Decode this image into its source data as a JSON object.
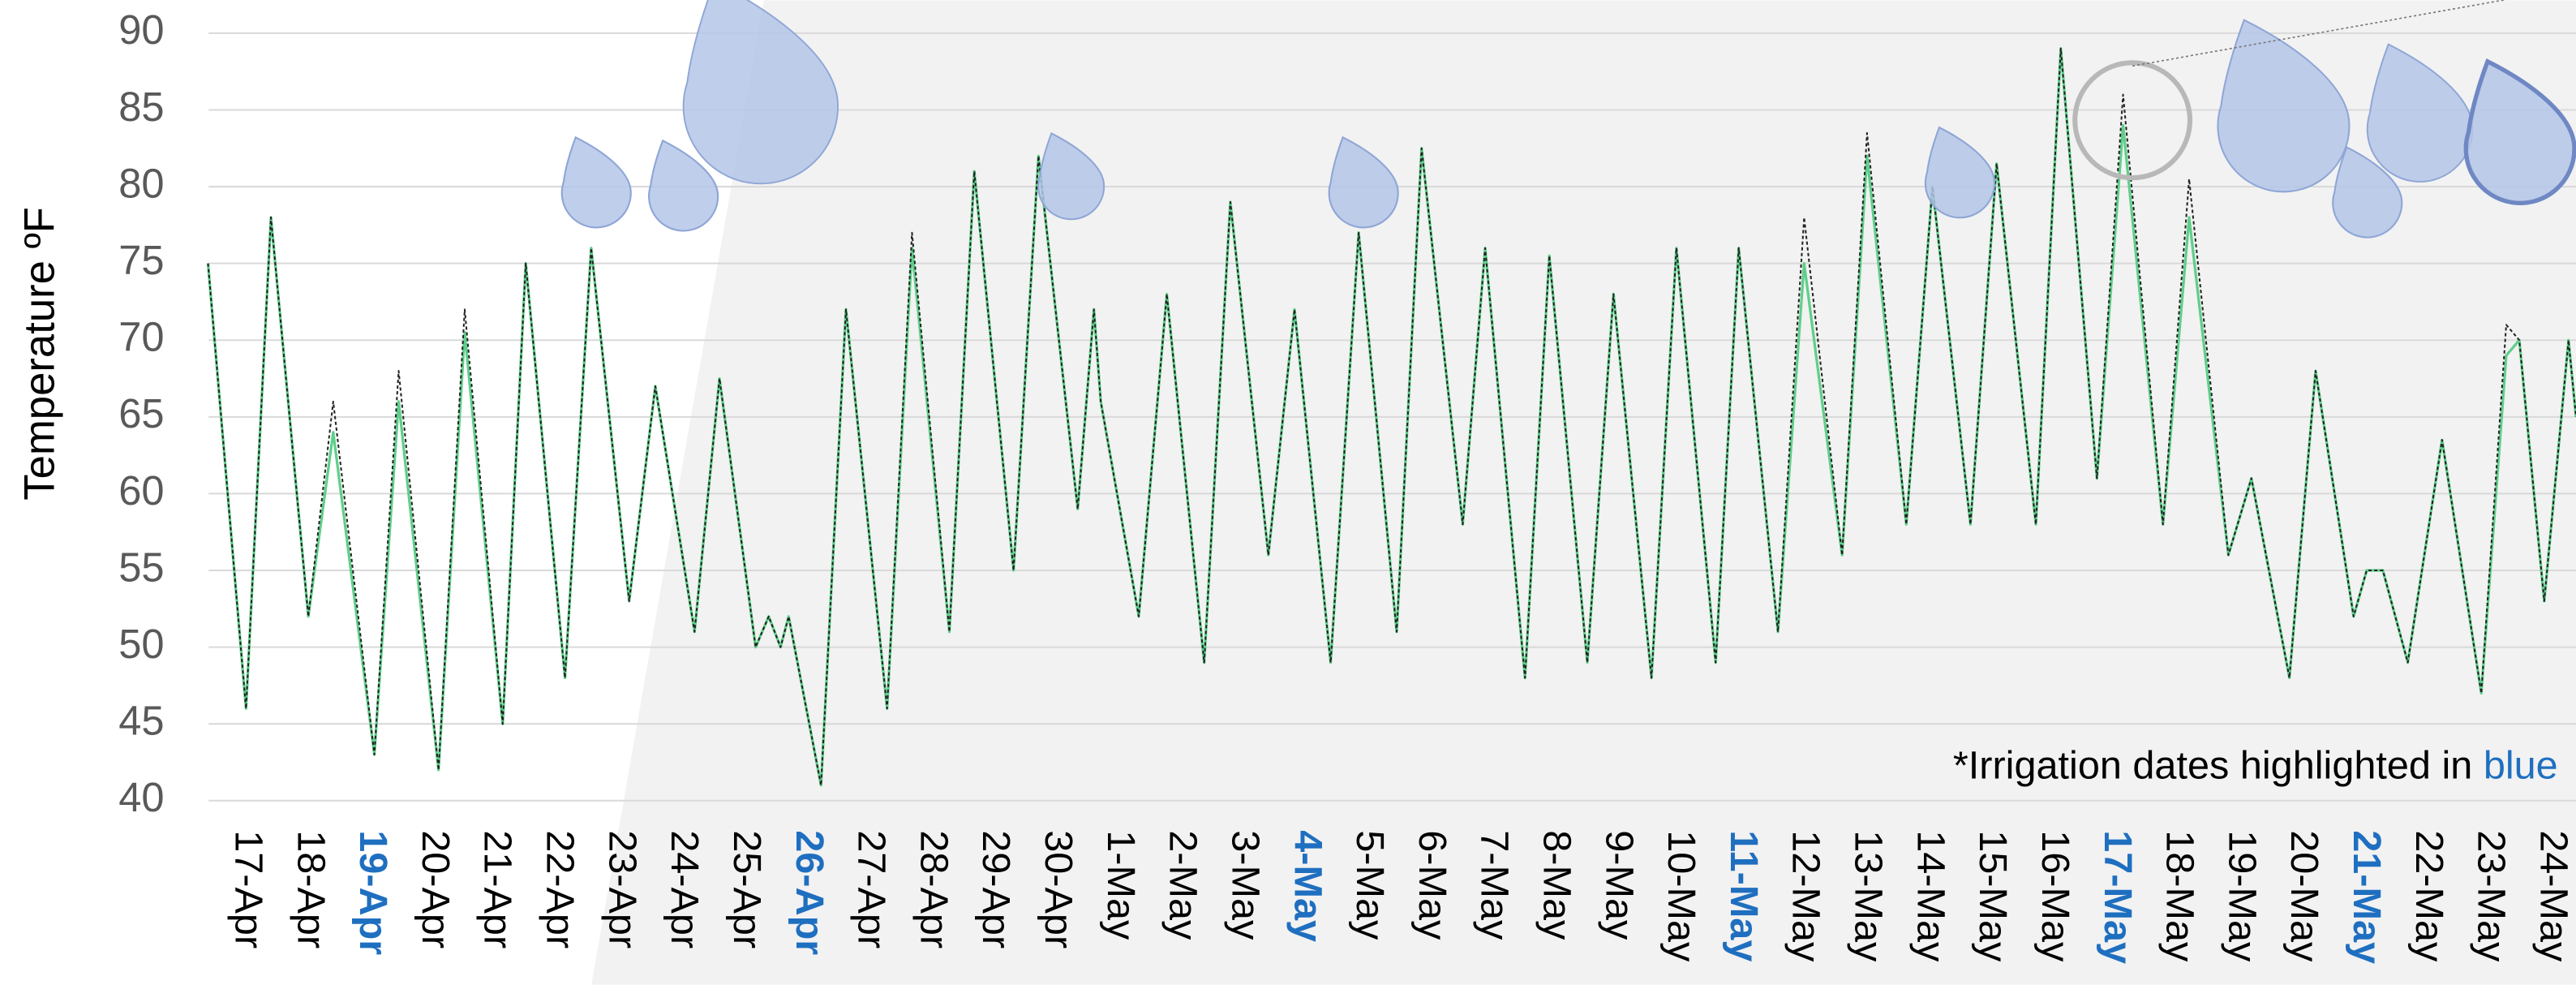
{
  "chart_data": {
    "type": "line",
    "y_label": "Temperature ºF",
    "annotation": [
      "*Irrigation dates highlighted in ",
      "blue"
    ],
    "x": [
      -0.61,
      0,
      0.4,
      1.0,
      1.4,
      2.06,
      2.45,
      3.09,
      3.51,
      4.12,
      4.49,
      5.12,
      5.54,
      6.15,
      6.57,
      7.2,
      7.6,
      8.18,
      8.39,
      8.58,
      8.71,
      9.23,
      9.63,
      10.29,
      10.69,
      11.29,
      11.69,
      12.32,
      12.72,
      13.35,
      13.61,
      13.72,
      14.33,
      14.78,
      15.38,
      15.8,
      16.41,
      16.83,
      17.41,
      17.86,
      18.47,
      18.87,
      19.53,
      19.89,
      20.53,
      20.92,
      21.53,
      21.95,
      22.56,
      22.96,
      23.59,
      23.96,
      24.59,
      25.01,
      25.62,
      26.02,
      26.65,
      27.07,
      27.68,
      28.1,
      28.73,
      29.13,
      29.71,
      30.13,
      30.77,
      31.19,
      31.82,
      32.19,
      32.8,
      33.22,
      33.83,
      34.04,
      34.3,
      34.7,
      35.25,
      35.88,
      36.28,
      36.49,
      36.89,
      37.28,
      37.4
    ],
    "series": [
      {
        "color": "#5fcf8a",
        "values": [
          75,
          46,
          78,
          52,
          64,
          43,
          66,
          42,
          70.5,
          45,
          75,
          48,
          76,
          53,
          67,
          51,
          67.5,
          50,
          52,
          50,
          52,
          41,
          72,
          46,
          76,
          51,
          81,
          55,
          82,
          59,
          72,
          66,
          52,
          73,
          49,
          79,
          56,
          72,
          49,
          77,
          51,
          82.5,
          58,
          76,
          48,
          75.5,
          49,
          73,
          48,
          76,
          49,
          76,
          51,
          75,
          56,
          82,
          58,
          80,
          58,
          81.5,
          58,
          89,
          61,
          84,
          58,
          78,
          56,
          61,
          48,
          68,
          52,
          55,
          55,
          49,
          63.5,
          47,
          69,
          70,
          53,
          70,
          65
        ]
      },
      {
        "color": "#222222",
        "dashed": true,
        "values": [
          75,
          46,
          78,
          52,
          66,
          43,
          68,
          42,
          72,
          45,
          75,
          48,
          76,
          53,
          67,
          51,
          67.5,
          50,
          52,
          50,
          52,
          41,
          72,
          46,
          77,
          51,
          81,
          55,
          82,
          59,
          72,
          66,
          52,
          73,
          49,
          79,
          56,
          72,
          49,
          77,
          51,
          82.5,
          58,
          76,
          48,
          75.5,
          49,
          73,
          48,
          76,
          49,
          76,
          51,
          78,
          56,
          83.5,
          58,
          80,
          58,
          81.5,
          58,
          89,
          61,
          86,
          58,
          80.5,
          56,
          61,
          48,
          68,
          52,
          55,
          55,
          49,
          63.5,
          47,
          71,
          70,
          53,
          70,
          65
        ]
      }
    ],
    "xlim": [
      -0.6,
      37.4
    ],
    "xticks": [
      {
        "value": 0,
        "label": "17-Apr"
      },
      {
        "value": 1,
        "label": "18-Apr"
      },
      {
        "value": 2,
        "label": "19-Apr",
        "highlight": true
      },
      {
        "value": 3,
        "label": "20-Apr"
      },
      {
        "value": 4,
        "label": "21-Apr"
      },
      {
        "value": 5,
        "label": "22-Apr"
      },
      {
        "value": 6,
        "label": "23-Apr"
      },
      {
        "value": 7,
        "label": "24-Apr"
      },
      {
        "value": 8,
        "label": "25-Apr"
      },
      {
        "value": 9,
        "label": "26-Apr",
        "highlight": true
      },
      {
        "value": 10,
        "label": "27-Apr"
      },
      {
        "value": 11,
        "label": "28-Apr"
      },
      {
        "value": 12,
        "label": "29-Apr"
      },
      {
        "value": 13,
        "label": "30-Apr"
      },
      {
        "value": 14,
        "label": "1-May"
      },
      {
        "value": 15,
        "label": "2-May"
      },
      {
        "value": 16,
        "label": "3-May"
      },
      {
        "value": 17,
        "label": "4-May",
        "highlight": true
      },
      {
        "value": 18,
        "label": "5-May"
      },
      {
        "value": 19,
        "label": "6-May"
      },
      {
        "value": 20,
        "label": "7-May"
      },
      {
        "value": 21,
        "label": "8-May"
      },
      {
        "value": 22,
        "label": "9-May"
      },
      {
        "value": 23,
        "label": "10-May"
      },
      {
        "value": 24,
        "label": "11-May",
        "highlight": true
      },
      {
        "value": 25,
        "label": "12-May"
      },
      {
        "value": 26,
        "label": "13-May"
      },
      {
        "value": 27,
        "label": "14-May"
      },
      {
        "value": 28,
        "label": "15-May"
      },
      {
        "value": 29,
        "label": "16-May"
      },
      {
        "value": 30,
        "label": "17-May",
        "highlight": true
      },
      {
        "value": 31,
        "label": "18-May"
      },
      {
        "value": 32,
        "label": "19-May"
      },
      {
        "value": 33,
        "label": "20-May"
      },
      {
        "value": 34,
        "label": "21-May",
        "highlight": true
      },
      {
        "value": 35,
        "label": "22-May"
      },
      {
        "value": 36,
        "label": "23-May"
      },
      {
        "value": 37,
        "label": "24-May"
      }
    ],
    "ylim": [
      40,
      90
    ],
    "yticks": [
      40,
      45,
      50,
      55,
      60,
      65,
      70,
      75,
      80,
      85,
      90
    ],
    "grid": true,
    "highlight_color": "#1f6fc0"
  }
}
